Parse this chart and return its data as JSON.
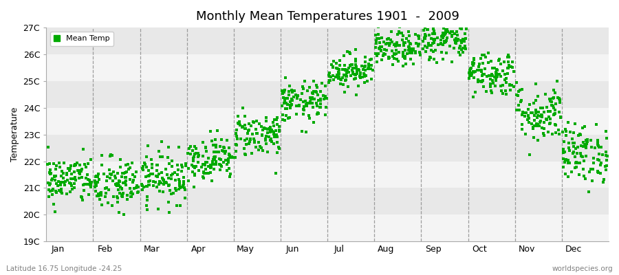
{
  "title": "Monthly Mean Temperatures 1901  -  2009",
  "ylabel": "Temperature",
  "xlabel": "",
  "ylim": [
    19,
    27
  ],
  "yticks": [
    19,
    20,
    21,
    22,
    23,
    24,
    25,
    26,
    27
  ],
  "ytick_labels": [
    "19C",
    "20C",
    "21C",
    "22C",
    "23C",
    "24C",
    "25C",
    "26C",
    "27C"
  ],
  "months": [
    "Jan",
    "Feb",
    "Mar",
    "Apr",
    "May",
    "Jun",
    "Jul",
    "Aug",
    "Sep",
    "Oct",
    "Nov",
    "Dec"
  ],
  "marker_color": "#00aa00",
  "background_color": "#ffffff",
  "plot_bg_color": "#f4f4f4",
  "alt_band_color": "#e8e8e8",
  "dash_color": "#888888",
  "legend_label": "Mean Temp",
  "footer_left": "Latitude 16.75 Longitude -24.25",
  "footer_right": "worldspecies.org",
  "month_means": [
    21.3,
    21.1,
    21.4,
    22.1,
    23.0,
    24.2,
    25.4,
    26.2,
    26.5,
    25.3,
    23.8,
    22.3
  ],
  "month_stds": [
    0.45,
    0.52,
    0.48,
    0.4,
    0.42,
    0.38,
    0.32,
    0.32,
    0.35,
    0.42,
    0.55,
    0.55
  ],
  "n_years": 109,
  "seed": 42,
  "figsize": [
    9.0,
    4.0
  ],
  "dpi": 100
}
